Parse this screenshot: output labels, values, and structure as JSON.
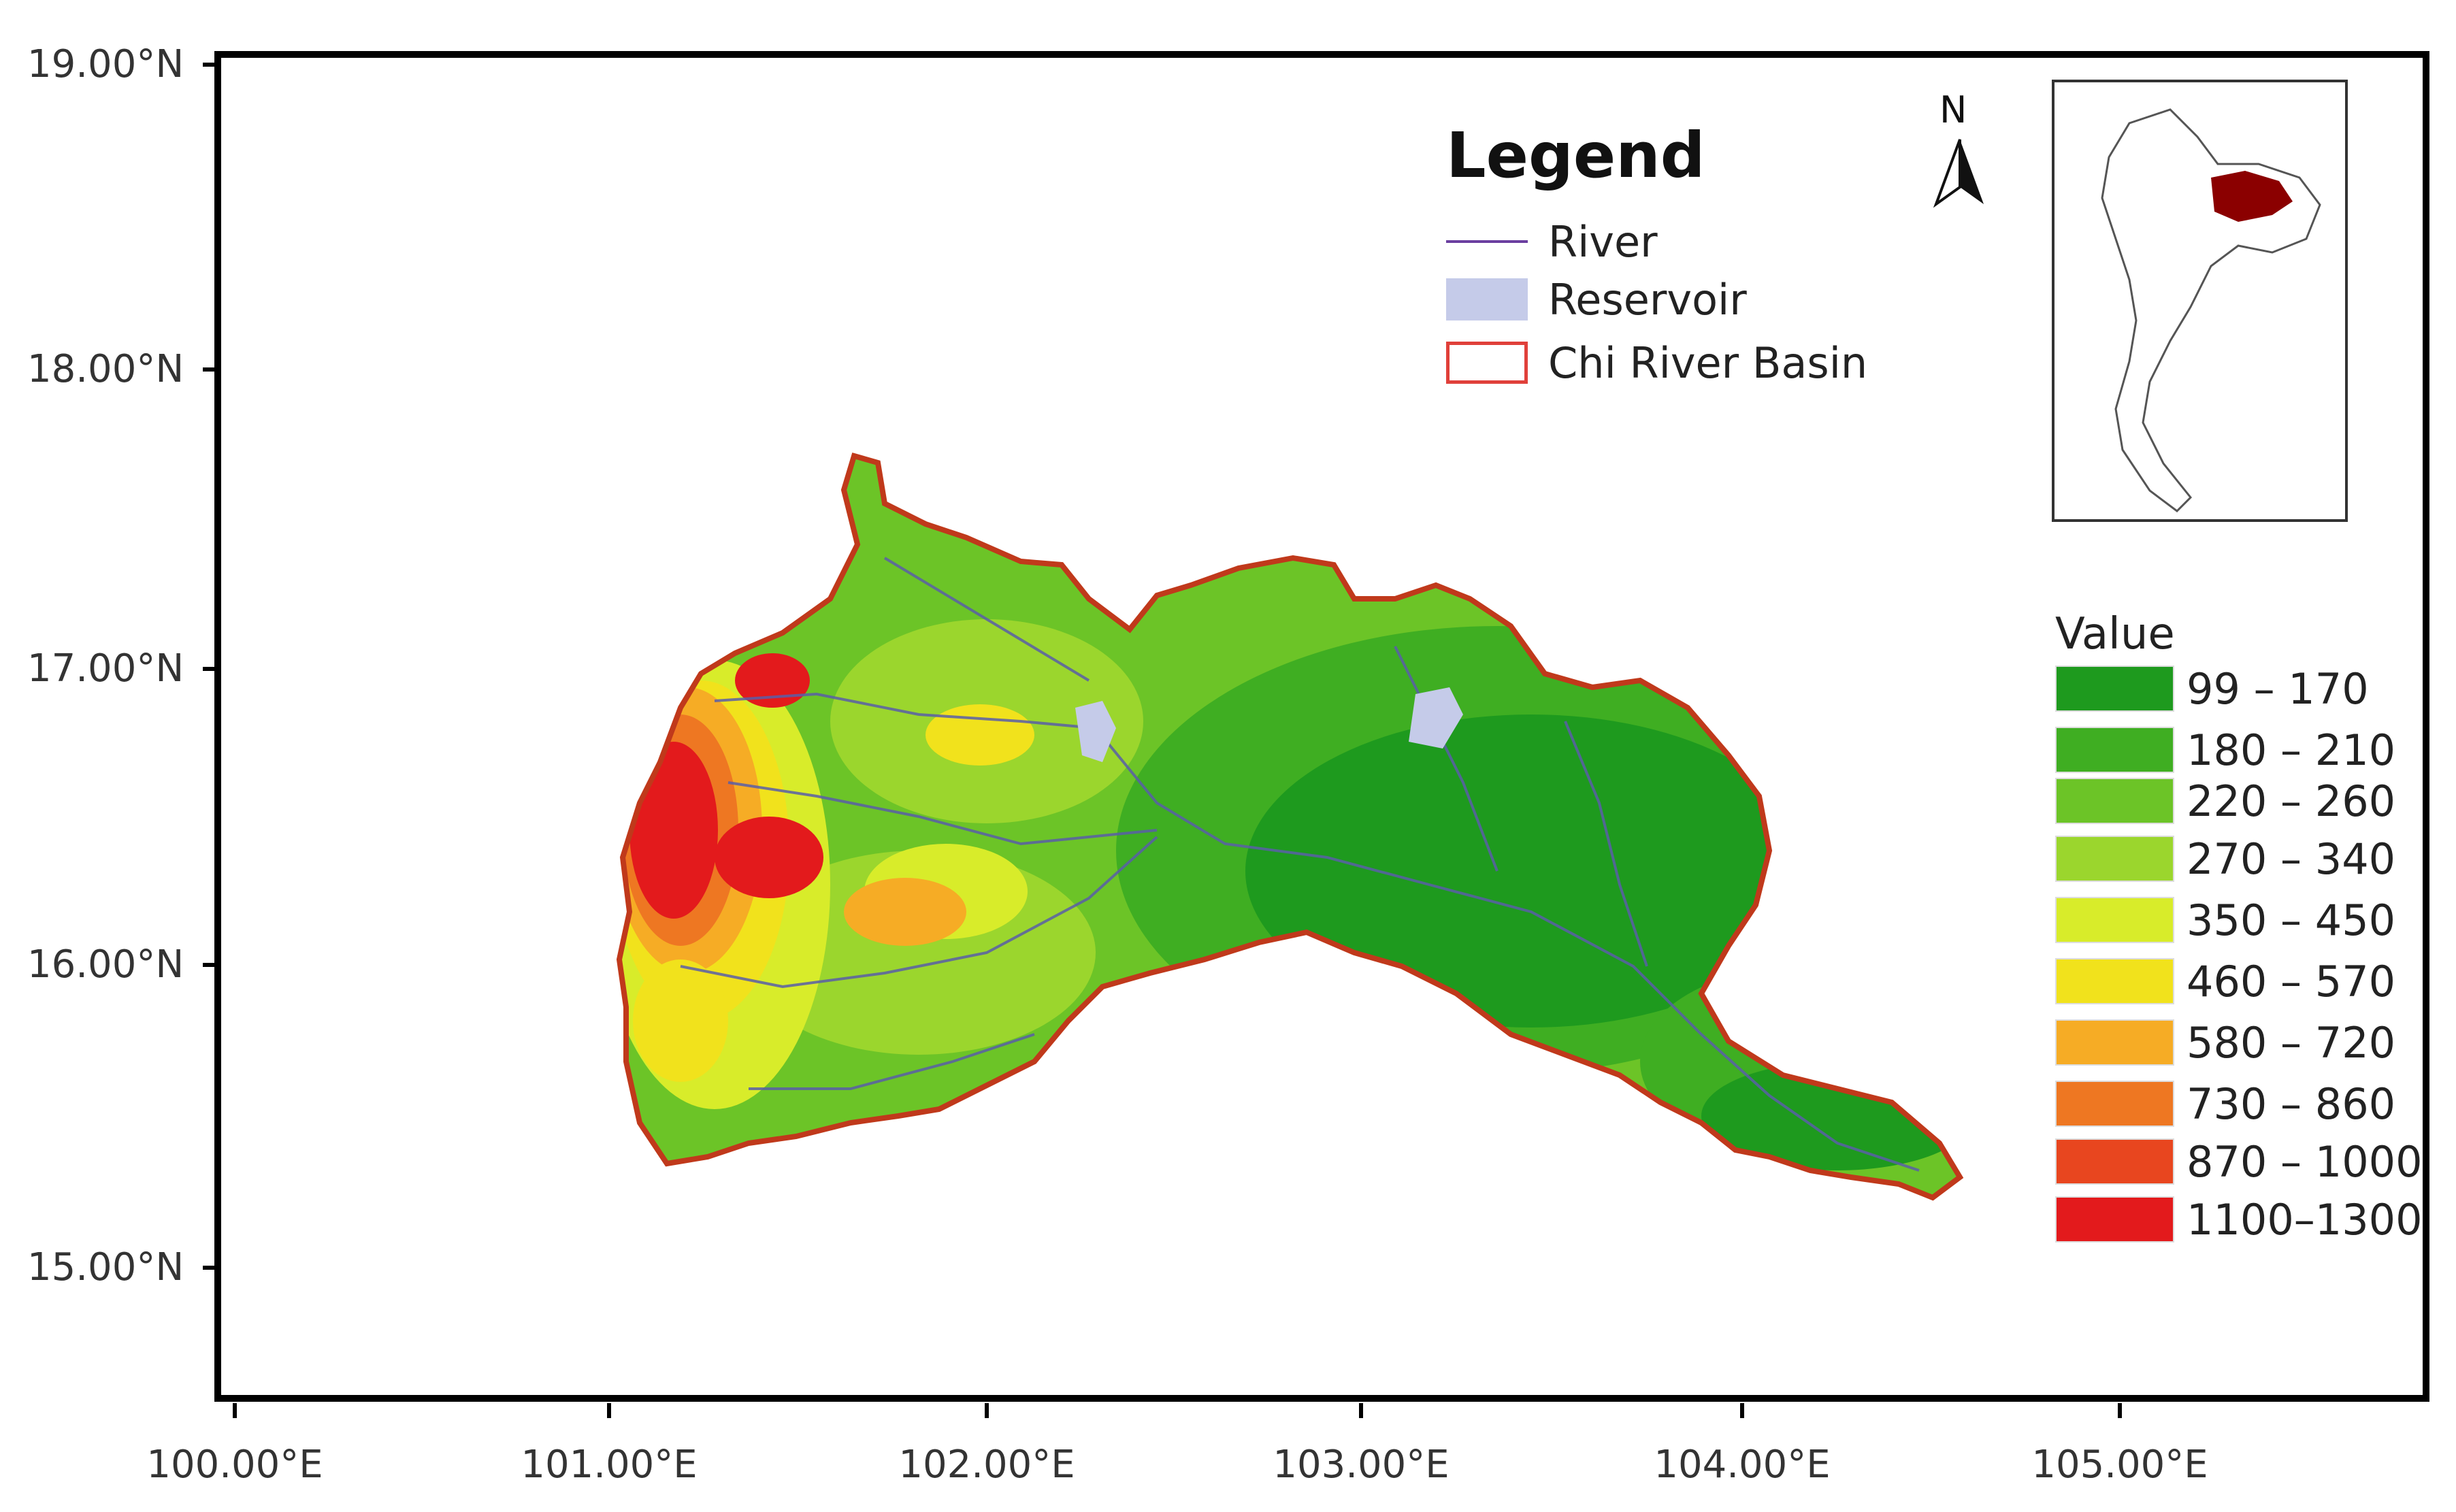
{
  "latitude_labels": [
    "19.00°N",
    "18.00°N",
    "17.00°N",
    "16.00°N",
    "15.00°N"
  ],
  "longitude_labels": [
    "100.00°E",
    "101.00°E",
    "102.00°E",
    "103.00°E",
    "104.00°E",
    "105.00°E"
  ],
  "legend": {
    "title": "Legend",
    "items": [
      {
        "symbol": "line",
        "color": "#6b3fa0",
        "label": "River"
      },
      {
        "symbol": "fill",
        "color": "#c5cbe9",
        "label": "Reservoir"
      },
      {
        "symbol": "outline",
        "color": "#e0403a",
        "label": "Chi River Basin"
      }
    ]
  },
  "north_arrow": {
    "label": "N"
  },
  "inset": {
    "highlight_color": "#8b0000"
  },
  "elevation": {
    "title": "Value",
    "classes": [
      {
        "range": "99 – 170",
        "color": "#1e9a1e"
      },
      {
        "range": "180 – 210",
        "color": "#3fae22"
      },
      {
        "range": "220 – 260",
        "color": "#6cc427"
      },
      {
        "range": "270 – 340",
        "color": "#9bd62d"
      },
      {
        "range": "350 – 450",
        "color": "#d8ec2a"
      },
      {
        "range": "460 – 570",
        "color": "#f1e21c"
      },
      {
        "range": "580 – 720",
        "color": "#f6ac25"
      },
      {
        "range": "730 – 860",
        "color": "#ee7722"
      },
      {
        "range": "870 – 1000",
        "color": "#e8461f"
      },
      {
        "range": "1100–1300",
        "color": "#e31a1c"
      }
    ]
  }
}
